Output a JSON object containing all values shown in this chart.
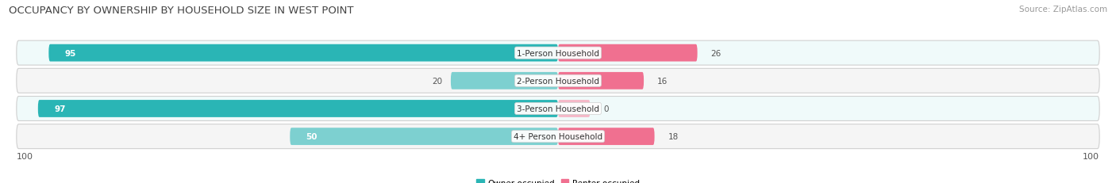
{
  "title": "OCCUPANCY BY OWNERSHIP BY HOUSEHOLD SIZE IN WEST POINT",
  "source": "Source: ZipAtlas.com",
  "categories": [
    "1-Person Household",
    "2-Person Household",
    "3-Person Household",
    "4+ Person Household"
  ],
  "owner_values": [
    95,
    20,
    97,
    50
  ],
  "renter_values": [
    26,
    16,
    0,
    18
  ],
  "owner_colors": [
    "#2ab5b5",
    "#7dd0d0",
    "#2ab5b5",
    "#7dd0d0"
  ],
  "renter_colors": [
    "#f07090",
    "#f07090",
    "#f5b8c8",
    "#f07090"
  ],
  "row_bg_color": "#e8e8e8",
  "row_inner_bg_even": "#f0fafa",
  "row_inner_bg_odd": "#f5f5f5",
  "max_val": 100,
  "title_fontsize": 9.5,
  "label_fontsize": 7.5,
  "value_fontsize": 7.5,
  "tick_fontsize": 8,
  "source_fontsize": 7.5,
  "legend_fontsize": 7.5
}
